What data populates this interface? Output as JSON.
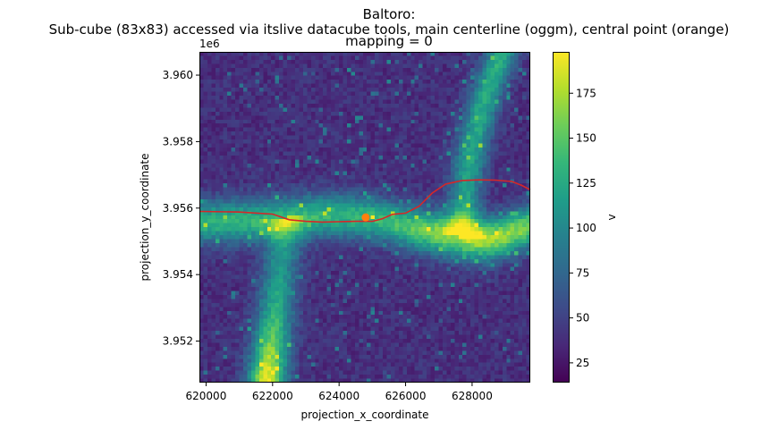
{
  "chart_data": {
    "type": "heatmap",
    "title_lines": [
      "Baltoro:",
      "Sub-cube (83x83) accessed via itslive datacube tools, main centerline (oggm), central point (orange)",
      "mapping = 0"
    ],
    "xlabel": "projection_x_coordinate",
    "ylabel": "projection_y_coordinate",
    "y_offset_text": "1e6",
    "xlim": [
      619800,
      629750
    ],
    "ylim": [
      3.95075,
      3.9607
    ],
    "x_ticks": [
      620000,
      622000,
      624000,
      626000,
      628000
    ],
    "x_tick_labels": [
      "620000",
      "622000",
      "624000",
      "626000",
      "628000"
    ],
    "y_ticks": [
      3.952,
      3.954,
      3.956,
      3.958,
      3.96
    ],
    "y_tick_labels": [
      "3.952",
      "3.954",
      "3.956",
      "3.958",
      "3.960"
    ],
    "colorbar": {
      "label": "v",
      "colormap": "viridis",
      "vmin": 14,
      "vmax": 198,
      "ticks": [
        25,
        50,
        75,
        100,
        125,
        150,
        175
      ],
      "tick_labels": [
        "25",
        "50",
        "75",
        "100",
        "125",
        "150",
        "175"
      ]
    },
    "grid_size": [
      83,
      83
    ],
    "centerline": {
      "name": "main centerline (oggm)",
      "color": "#d62728",
      "x": [
        619800,
        621000,
        622000,
        622500,
        623000,
        623500,
        624000,
        624500,
        625000,
        625300,
        625600,
        626000,
        626400,
        626800,
        627200,
        627700,
        628200,
        628700,
        629200,
        629500,
        629750
      ],
      "y": [
        3.9559,
        3.95588,
        3.95582,
        3.95565,
        3.9556,
        3.95558,
        3.95559,
        3.9556,
        3.9556,
        3.95568,
        3.95581,
        3.95585,
        3.95605,
        3.95645,
        3.95672,
        3.95683,
        3.95685,
        3.95684,
        3.9568,
        3.95668,
        3.95655
      ]
    },
    "central_point": {
      "name": "central point",
      "color": "#ff7f0e",
      "x": 624800,
      "y": 3.95572
    }
  }
}
